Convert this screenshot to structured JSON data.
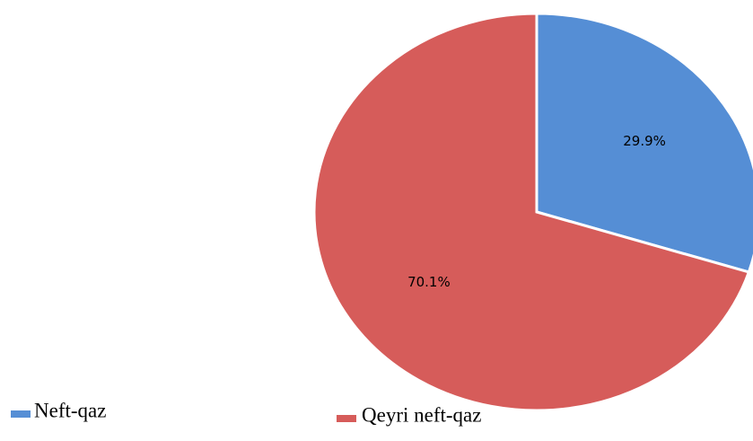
{
  "chart_data": {
    "type": "pie",
    "categories": [
      "Neft-qaz",
      "Qeyri neft-qaz"
    ],
    "values": [
      29.9,
      70.1
    ],
    "value_labels": [
      "29.9%",
      "70.1%"
    ],
    "colors": [
      "#558ed5",
      "#d65c5a"
    ],
    "legend": "bottom"
  }
}
